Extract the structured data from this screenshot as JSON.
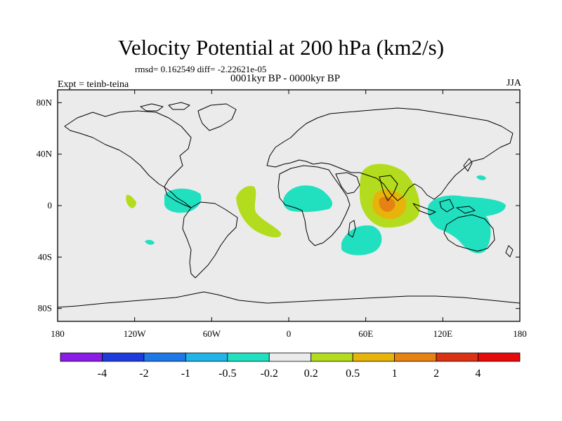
{
  "header": {
    "title": "Velocity Potential at 200 hPa (km2/s)",
    "stats": "rmsd= 0.162549 diff= -2.22621e-05",
    "subtitle": "0001kyr BP - 0000kyr BP",
    "experiment": "Expt = teinb-teina",
    "season": "JJA"
  },
  "axes": {
    "lat_labels": [
      "80N",
      "40N",
      "0",
      "40S",
      "80S"
    ],
    "lat_values": [
      80,
      40,
      0,
      -40,
      -80
    ],
    "lon_labels": [
      "180",
      "120W",
      "60W",
      "0",
      "60E",
      "120E",
      "180"
    ],
    "lon_values": [
      -180,
      -120,
      -60,
      0,
      60,
      120,
      180
    ]
  },
  "colorbar": {
    "labels": [
      "-4",
      "-2",
      "-1",
      "-0.5",
      "-0.2",
      "0.2",
      "0.5",
      "1",
      "2",
      "4"
    ],
    "colors": [
      "#8a1ee6",
      "#1e3cdc",
      "#1e78e6",
      "#22b4e6",
      "#20e0c0",
      "#ebebeb",
      "#b4dc1e",
      "#e6b40a",
      "#e68214",
      "#dc3214",
      "#e60a0a"
    ]
  },
  "colors": {
    "ocean": "#ebebeb",
    "coast": "#000000",
    "negative_fill": "#20e0c0",
    "positive_fill": "#b4dc1e",
    "mid_fill": "#e6b40a",
    "high_fill": "#e68214"
  }
}
